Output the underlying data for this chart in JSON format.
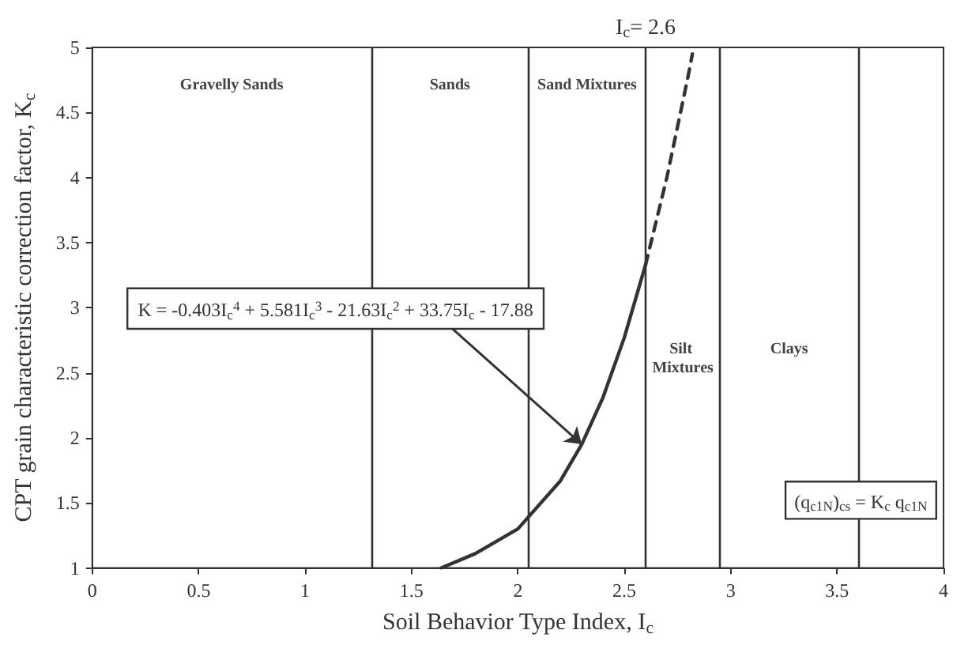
{
  "chart_data": {
    "type": "line",
    "xlabel": "Soil Behavior Type Index, I$_{c}$",
    "ylabel": "CPT grain characteristic correction factor, K$_{c}$",
    "xlim": [
      0,
      4
    ],
    "xticks": [
      0,
      0.5,
      1,
      1.5,
      2,
      2.5,
      3,
      3.5,
      4
    ],
    "ylim": [
      1,
      5
    ],
    "yticks": [
      1,
      1.5,
      2,
      2.5,
      3,
      3.5,
      4,
      4.5,
      5
    ],
    "grid": false,
    "marker": "none",
    "series": [
      {
        "color": "#333333",
        "line_style": "solid",
        "x": [
          1.64,
          1.8,
          2.0,
          2.2,
          2.3,
          2.4,
          2.5,
          2.6
        ],
        "values": [
          1,
          1.11,
          1.3,
          1.67,
          1.95,
          2.31,
          2.77,
          3.33
        ]
      },
      {
        "color": "#333333",
        "line_style": "dashed",
        "x": [
          2.6,
          2.7,
          2.8,
          2.82
        ],
        "values": [
          3.33,
          4.0,
          4.78,
          4.95
        ]
      }
    ],
    "ref_lines": [
      {
        "axis": "x",
        "value": 1.31,
        "color": "#333333"
      },
      {
        "axis": "x",
        "value": 2.05,
        "color": "#333333"
      },
      {
        "axis": "x",
        "value": 2.6,
        "color": "#333333",
        "label": "I$_{c}$= 2.6"
      },
      {
        "axis": "x",
        "value": 2.95,
        "color": "#333333"
      },
      {
        "axis": "x",
        "value": 3.6,
        "color": "#333333"
      }
    ],
    "annotations": [
      "Gravelly Sands",
      "Sands",
      "Sand Mixtures",
      "Silt Mixtures",
      "Clays",
      "(q$_{c1N}$)$_{cs}$ = K$_{c}$ q$_{c1N}$",
      "K = -0.403I$_{c}$$^{4}$ + 5.581I$_{c}$$^{3}$ - 21.63I$_{c}$$^{2}$ + 33.75I$_{c}$ - 17.88"
    ]
  }
}
